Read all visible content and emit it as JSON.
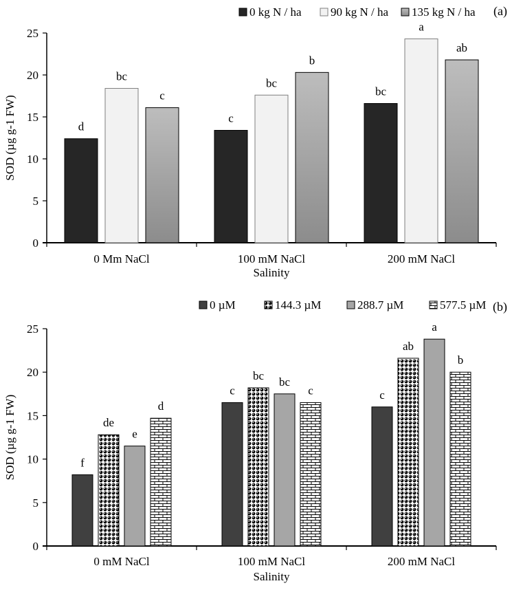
{
  "chart_data": [
    {
      "type": "bar",
      "panel_label": "(a)",
      "categories": [
        "0 Mm NaCl",
        "100 mM NaCl",
        "200 mM NaCl"
      ],
      "xlabel": "Salinity",
      "ylabel": "SOD (µg g-1 FW)",
      "ylim": [
        0,
        25
      ],
      "yticks": [
        "0",
        "5",
        "10",
        "15",
        "20",
        "25"
      ],
      "legend_position": "top",
      "series": [
        {
          "name": "0 kg N / ha",
          "values": [
            12.4,
            13.4,
            16.6
          ],
          "letters": [
            "d",
            "c",
            "bc"
          ],
          "color": "#262626",
          "fill": "solid"
        },
        {
          "name": "90 kg N / ha",
          "values": [
            18.4,
            17.6,
            24.3
          ],
          "letters": [
            "bc",
            "bc",
            "a"
          ],
          "color": "#f2f2f2",
          "fill": "solid"
        },
        {
          "name": "135 kg N / ha",
          "values": [
            16.1,
            20.3,
            21.8
          ],
          "letters": [
            "c",
            "b",
            "ab"
          ],
          "color": "#a6a6a6",
          "fill": "gradient"
        }
      ]
    },
    {
      "type": "bar",
      "panel_label": "(b)",
      "categories": [
        "0 mM NaCl",
        "100 mM NaCl",
        "200 mM NaCl"
      ],
      "xlabel": "Salinity",
      "ylabel": "SOD (µg g-1 FW)",
      "ylim": [
        0,
        25
      ],
      "yticks": [
        "0",
        "5",
        "10",
        "15",
        "20",
        "25"
      ],
      "legend_position": "top",
      "series": [
        {
          "name": "0 µM",
          "values": [
            8.2,
            16.5,
            16.0
          ],
          "letters": [
            "f",
            "c",
            "c"
          ],
          "color": "#404040",
          "fill": "solid"
        },
        {
          "name": "144.3 µM",
          "values": [
            12.8,
            18.2,
            21.6
          ],
          "letters": [
            "de",
            "bc",
            "ab"
          ],
          "color": "#000000",
          "fill": "dots"
        },
        {
          "name": "288.7 µM",
          "values": [
            11.5,
            17.5,
            23.8
          ],
          "letters": [
            "e",
            "bc",
            "a"
          ],
          "color": "#a6a6a6",
          "fill": "solid"
        },
        {
          "name": "577.5 µM",
          "values": [
            14.7,
            16.5,
            20.0
          ],
          "letters": [
            "d",
            "c",
            "b"
          ],
          "color": "#000000",
          "fill": "bricks"
        }
      ]
    }
  ]
}
